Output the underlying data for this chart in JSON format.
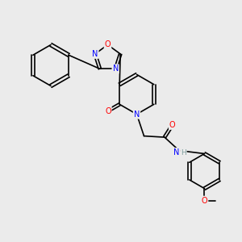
{
  "bg_color": "#ebebeb",
  "bond_color": "#000000",
  "atom_colors": {
    "N": "#0000ff",
    "O": "#ff0000",
    "H": "#7f9f9f",
    "C": "#000000"
  },
  "font_size_atom": 7,
  "font_size_label": 7,
  "lw": 1.2
}
